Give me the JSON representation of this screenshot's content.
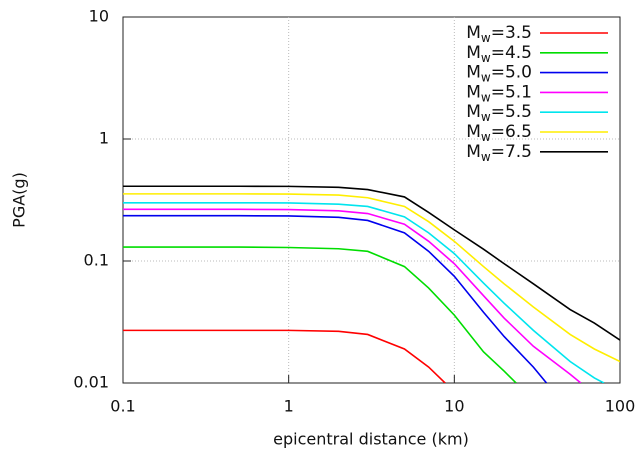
{
  "chart_data": {
    "type": "line",
    "x_label": "epicentral distance (km)",
    "y_label": "PGA(g)",
    "xscale": "log",
    "yscale": "log",
    "grid": true,
    "legend": "upper right",
    "xlim": [
      0.1,
      100
    ],
    "ylim": [
      0.01,
      10
    ],
    "xticks": [
      0.1,
      1,
      10,
      100
    ],
    "yticks": [
      0.01,
      0.1,
      1,
      10
    ],
    "series": [
      {
        "name": "Mw=3.5",
        "color": "#ff0000",
        "x": [
          0.1,
          0.5,
          1,
          2,
          3,
          5,
          7,
          8.8
        ],
        "values": [
          0.027,
          0.027,
          0.027,
          0.0265,
          0.025,
          0.019,
          0.0135,
          0.01
        ]
      },
      {
        "name": "Mw=4.5",
        "color": "#00dd00",
        "x": [
          0.1,
          0.5,
          1,
          2,
          3,
          5,
          7,
          10,
          15,
          20,
          23.6
        ],
        "values": [
          0.13,
          0.13,
          0.129,
          0.126,
          0.12,
          0.09,
          0.06,
          0.036,
          0.018,
          0.0125,
          0.01
        ]
      },
      {
        "name": "Mw=5.0",
        "color": "#0000ee",
        "x": [
          0.1,
          0.5,
          1,
          2,
          3,
          5,
          7,
          10,
          15,
          20,
          30,
          36
        ],
        "values": [
          0.235,
          0.235,
          0.234,
          0.228,
          0.215,
          0.17,
          0.12,
          0.075,
          0.038,
          0.024,
          0.0135,
          0.01
        ]
      },
      {
        "name": "Mw=5.1",
        "color": "#ff00ff",
        "x": [
          0.1,
          0.5,
          1,
          2,
          3,
          5,
          7,
          10,
          15,
          20,
          30,
          50,
          58
        ],
        "values": [
          0.265,
          0.265,
          0.264,
          0.258,
          0.245,
          0.2,
          0.145,
          0.095,
          0.052,
          0.034,
          0.02,
          0.0118,
          0.01
        ]
      },
      {
        "name": "Mw=5.5",
        "color": "#00e5ee",
        "x": [
          0.1,
          0.5,
          1,
          2,
          3,
          5,
          7,
          10,
          15,
          20,
          30,
          50,
          70,
          80
        ],
        "values": [
          0.3,
          0.3,
          0.299,
          0.292,
          0.28,
          0.23,
          0.17,
          0.115,
          0.066,
          0.045,
          0.027,
          0.015,
          0.011,
          0.01
        ]
      },
      {
        "name": "Mw=6.5",
        "color": "#ffee00",
        "x": [
          0.1,
          0.5,
          1,
          2,
          3,
          5,
          7,
          10,
          15,
          20,
          30,
          50,
          70,
          100
        ],
        "values": [
          0.355,
          0.355,
          0.354,
          0.347,
          0.33,
          0.28,
          0.21,
          0.145,
          0.09,
          0.065,
          0.042,
          0.025,
          0.019,
          0.015
        ]
      },
      {
        "name": "Mw=7.5",
        "color": "#000000",
        "x": [
          0.1,
          0.5,
          1,
          2,
          3,
          5,
          7,
          10,
          15,
          20,
          30,
          50,
          70,
          100
        ],
        "values": [
          0.41,
          0.41,
          0.409,
          0.402,
          0.385,
          0.335,
          0.25,
          0.18,
          0.125,
          0.095,
          0.065,
          0.04,
          0.031,
          0.0225
        ]
      }
    ]
  }
}
